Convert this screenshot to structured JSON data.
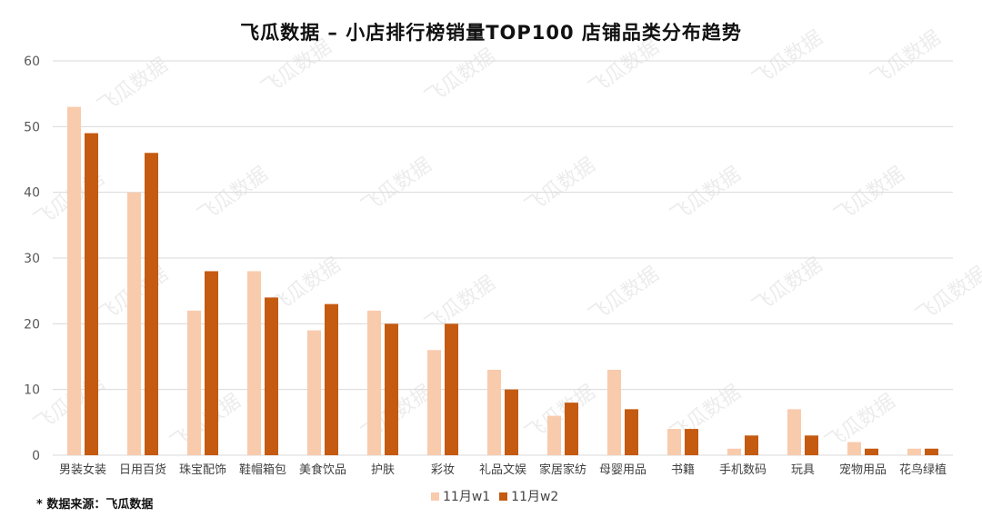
{
  "title": "飞瓜数据  –  小店排行榜销量TOP100 店铺品类分布趋势",
  "source_note": "* 数据来源：飞瓜数据",
  "watermark_text": "飞瓜数据",
  "colors": {
    "w1": "#F8CBAD",
    "w2": "#C55A11",
    "grid": "#D9D9D9",
    "axis_text": "#595959",
    "watermark": "#DDDDDD"
  },
  "chart_data": {
    "type": "bar",
    "title": "飞瓜数据  –  小店排行榜销量TOP100 店铺品类分布趋势",
    "categories": [
      "男装女装",
      "日用百货",
      "珠宝配饰",
      "鞋帽箱包",
      "美食饮品",
      "护肤",
      "彩妆",
      "礼品文娱",
      "家居家纺",
      "母婴用品",
      "书籍",
      "手机数码",
      "玩具",
      "宠物用品",
      "花鸟绿植"
    ],
    "series": [
      {
        "name": "11月w1",
        "values": [
          53,
          40,
          22,
          28,
          19,
          22,
          16,
          13,
          6,
          13,
          4,
          1,
          7,
          2,
          1
        ]
      },
      {
        "name": "11月w2",
        "values": [
          49,
          46,
          28,
          24,
          23,
          20,
          20,
          10,
          8,
          7,
          4,
          3,
          3,
          1,
          1
        ]
      }
    ],
    "ylim": [
      0,
      60
    ],
    "yticks": [
      0,
      10,
      20,
      30,
      40,
      50,
      60
    ],
    "xlabel": "",
    "ylabel": "",
    "grid": true,
    "legend_position": "bottom"
  }
}
